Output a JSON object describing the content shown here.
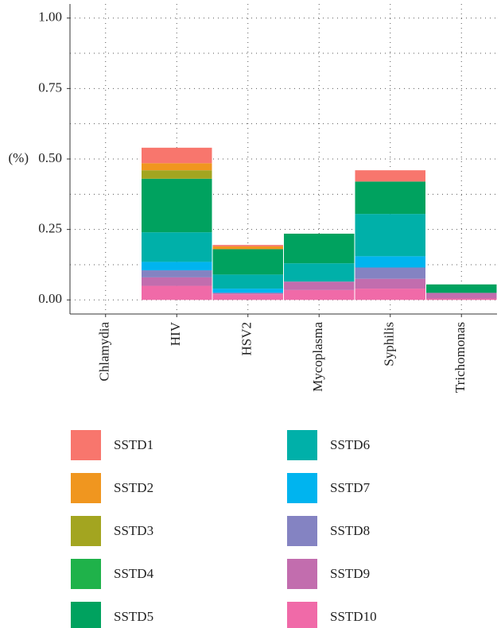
{
  "chart_data": {
    "type": "stacked-bar",
    "y_label": "(%)",
    "categories": [
      "Chlamydia",
      "HIV",
      "HSV2",
      "Mycoplasma",
      "Syphilis",
      "Trichomonas"
    ],
    "ylim": [
      -0.05,
      1.05
    ],
    "yticks": [
      {
        "value": 0,
        "label": "0.00"
      },
      0.25,
      {
        "value": 0.5,
        "label": "0.50"
      },
      0.75,
      {
        "value": 1,
        "label": "1.00"
      }
    ],
    "grid": true,
    "series": [
      {
        "name": "SSTD1",
        "color": "#F8766D",
        "values": [
          0,
          0.055,
          0.005,
          0,
          0.04,
          0
        ]
      },
      {
        "name": "SSTD2",
        "color": "#F0961F",
        "values": [
          0,
          0.025,
          0.01,
          0,
          0,
          0
        ]
      },
      {
        "name": "SSTD3",
        "color": "#A3A520",
        "values": [
          0,
          0.03,
          0,
          0,
          0,
          0
        ]
      },
      {
        "name": "SSTD4",
        "color": "#1FB24A",
        "values": [
          0,
          0,
          0,
          0,
          0,
          0
        ]
      },
      {
        "name": "SSTD5",
        "color": "#00A25F",
        "values": [
          0,
          0.19,
          0.09,
          0.105,
          0.115,
          0.03
        ]
      },
      {
        "name": "SSTD6",
        "color": "#00B0A9",
        "values": [
          0,
          0.105,
          0.05,
          0.065,
          0.15,
          0
        ]
      },
      {
        "name": "SSTD7",
        "color": "#00B4EF",
        "values": [
          0,
          0.03,
          0.015,
          0,
          0.04,
          0
        ]
      },
      {
        "name": "SSTD8",
        "color": "#8483C2",
        "values": [
          0,
          0.025,
          0,
          0,
          0.04,
          0
        ]
      },
      {
        "name": "SSTD9",
        "color": "#C26DAE",
        "values": [
          0,
          0.03,
          0.005,
          0.03,
          0.035,
          0.02
        ]
      },
      {
        "name": "SSTD10",
        "color": "#F06AA8",
        "values": [
          0,
          0.05,
          0.02,
          0.035,
          0.04,
          0.005
        ]
      }
    ]
  }
}
